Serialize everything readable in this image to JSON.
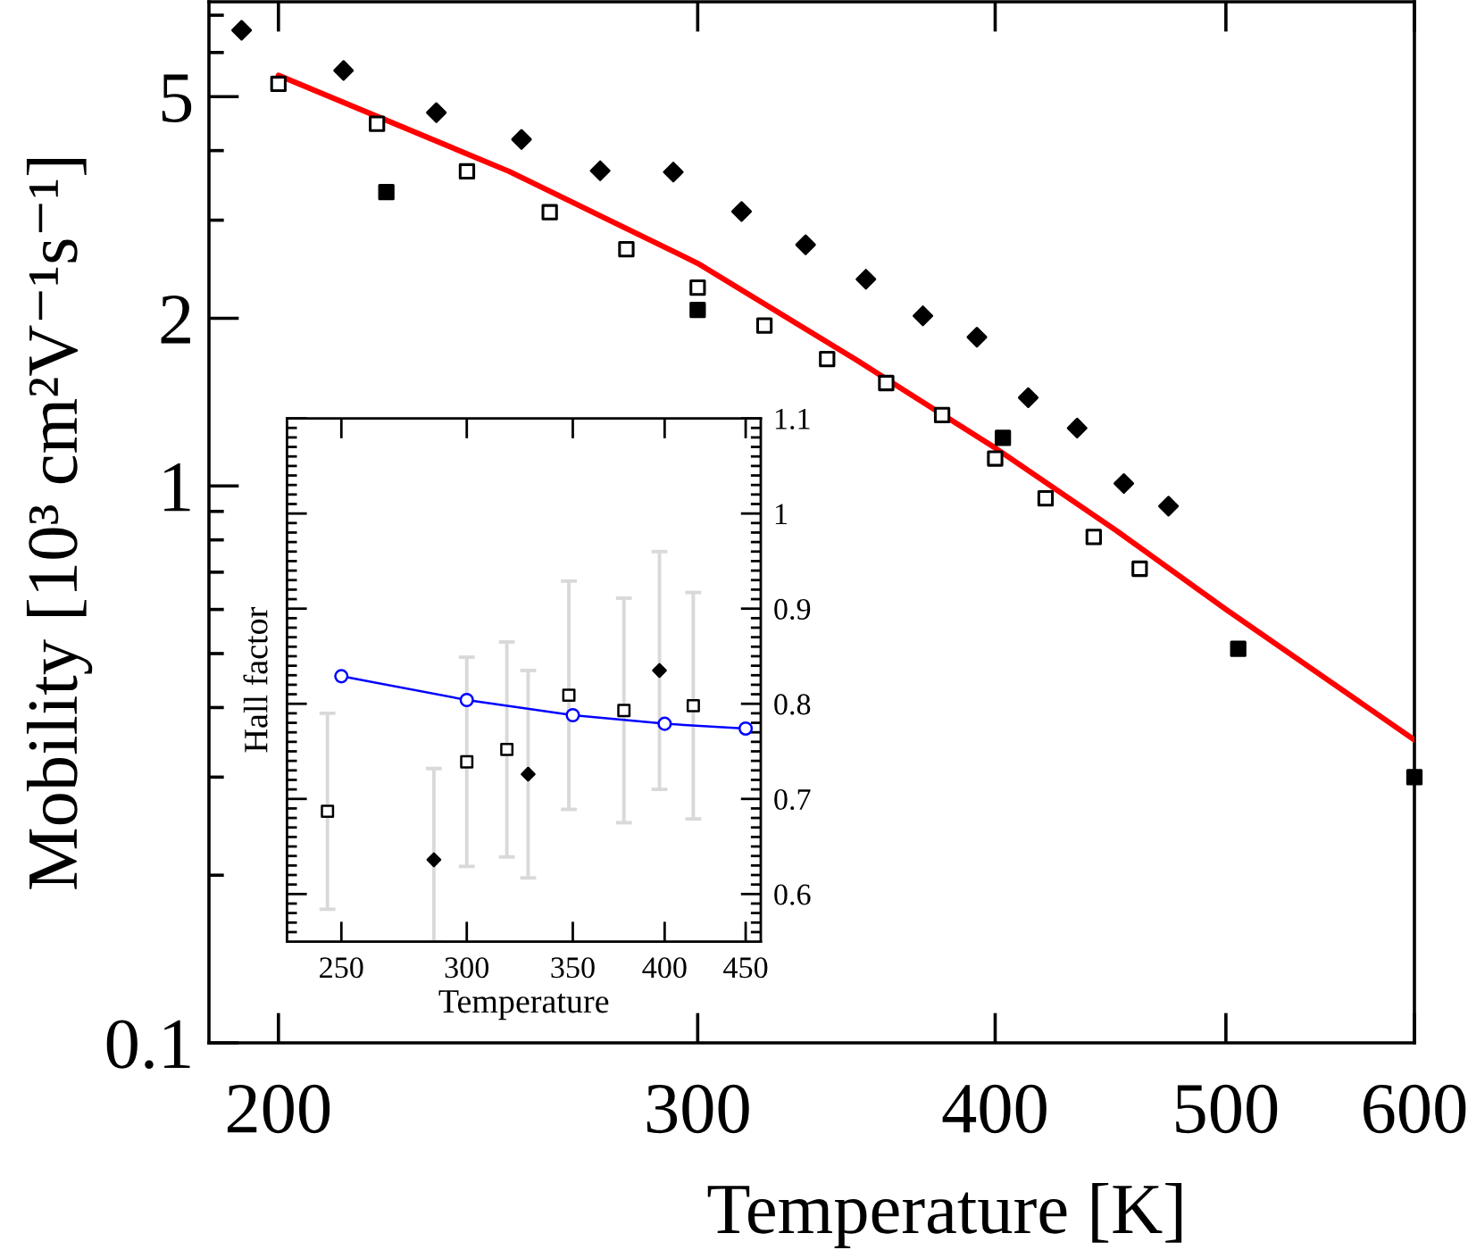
{
  "chart_data": [
    {
      "type": "scatter",
      "xlabel": "Temperature [K]",
      "ylabel": "Mobility [10³ cm²V⁻¹s⁻¹]",
      "log": "xy",
      "xlim": [
        187,
        600
      ],
      "ylim": [
        0.1,
        7.4
      ],
      "xticks": [
        200,
        300,
        400,
        500,
        600
      ],
      "yticks": [
        0.1,
        {
          "value": 0.2,
          "label": null
        },
        {
          "value": 0.3,
          "label": null
        },
        {
          "value": 0.4,
          "label": null
        },
        {
          "value": 0.5,
          "label": null
        },
        {
          "value": 0.6,
          "label": null
        },
        {
          "value": 0.7,
          "label": null
        },
        {
          "value": 0.8,
          "label": null
        },
        {
          "value": 0.9,
          "label": null
        },
        1,
        2,
        {
          "value": 3,
          "label": null
        },
        {
          "value": 4,
          "label": null
        },
        5,
        {
          "value": 6,
          "label": null
        },
        {
          "value": 7,
          "label": null
        }
      ],
      "series": [
        {
          "marker": "diamond",
          "color": "#000000",
          "x": [
            193,
            213,
            233,
            253,
            273,
            293,
            313,
            333,
            353,
            373,
            393,
            413,
            433,
            453,
            473
          ],
          "values": [
            6.58,
            5.57,
            4.68,
            4.19,
            3.68,
            3.66,
            3.11,
            2.71,
            2.35,
            2.02,
            1.85,
            1.44,
            1.27,
            1.01,
            0.92
          ]
        },
        {
          "marker": "square",
          "color": "#000000",
          "x": [
            200,
            220,
            240,
            260,
            280,
            300,
            320,
            340,
            360,
            380,
            400,
            420,
            440,
            460
          ],
          "values": [
            5.27,
            4.47,
            3.67,
            3.1,
            2.66,
            2.27,
            1.94,
            1.69,
            1.53,
            1.34,
            1.12,
            0.95,
            0.81,
            0.71
          ]
        },
        {
          "marker": "square",
          "color": "#000000",
          "x": [
            222,
            300,
            403,
            506,
            600
          ],
          "values": [
            3.37,
            2.07,
            1.22,
            0.51,
            0.3
          ]
        },
        {
          "type": "line",
          "marker": "none",
          "line_style": "solid",
          "color": "#ff0000",
          "x": [
            200,
            250,
            300,
            350,
            400,
            450,
            500,
            600
          ],
          "values": [
            5.46,
            3.67,
            2.51,
            1.68,
            1.17,
            0.83,
            0.6,
            0.35
          ]
        }
      ]
    },
    {
      "type": "scatter",
      "xlabel": "Temperature",
      "ylabel": "Hall factor",
      "log": "x",
      "xlim": [
        231,
        460
      ],
      "ylim": [
        0.55,
        1.1
      ],
      "xticks": [
        250,
        300,
        350,
        400,
        450
      ],
      "yticks": [
        {
          "value": 0.56,
          "label": null
        },
        {
          "value": 0.57,
          "label": null
        },
        {
          "value": 0.58,
          "label": null
        },
        {
          "value": 0.59,
          "label": null
        },
        0.6,
        {
          "value": 0.61,
          "label": null
        },
        {
          "value": 0.62,
          "label": null
        },
        {
          "value": 0.63,
          "label": null
        },
        {
          "value": 0.64,
          "label": null
        },
        {
          "value": 0.65,
          "label": null
        },
        {
          "value": 0.66,
          "label": null
        },
        {
          "value": 0.67,
          "label": null
        },
        {
          "value": 0.68,
          "label": null
        },
        {
          "value": 0.69,
          "label": null
        },
        0.7,
        {
          "value": 0.71,
          "label": null
        },
        {
          "value": 0.72,
          "label": null
        },
        {
          "value": 0.73,
          "label": null
        },
        {
          "value": 0.74,
          "label": null
        },
        {
          "value": 0.75,
          "label": null
        },
        {
          "value": 0.76,
          "label": null
        },
        {
          "value": 0.77,
          "label": null
        },
        {
          "value": 0.78,
          "label": null
        },
        {
          "value": 0.79,
          "label": null
        },
        0.8,
        {
          "value": 0.81,
          "label": null
        },
        {
          "value": 0.82,
          "label": null
        },
        {
          "value": 0.83,
          "label": null
        },
        {
          "value": 0.84,
          "label": null
        },
        {
          "value": 0.85,
          "label": null
        },
        {
          "value": 0.86,
          "label": null
        },
        {
          "value": 0.87,
          "label": null
        },
        {
          "value": 0.88,
          "label": null
        },
        {
          "value": 0.89,
          "label": null
        },
        0.9,
        {
          "value": 0.91,
          "label": null
        },
        {
          "value": 0.92,
          "label": null
        },
        {
          "value": 0.93,
          "label": null
        },
        {
          "value": 0.94,
          "label": null
        },
        {
          "value": 0.95,
          "label": null
        },
        {
          "value": 0.96,
          "label": null
        },
        {
          "value": 0.97,
          "label": null
        },
        {
          "value": 0.98,
          "label": null
        },
        {
          "value": 0.99,
          "label": null
        },
        1,
        {
          "value": 1.01,
          "label": null
        },
        {
          "value": 1.02,
          "label": null
        },
        {
          "value": 1.03,
          "label": null
        },
        {
          "value": 1.04,
          "label": null
        },
        {
          "value": 1.05,
          "label": null
        },
        {
          "value": 1.06,
          "label": null
        },
        {
          "value": 1.07,
          "label": null
        },
        {
          "value": 1.08,
          "label": null
        },
        {
          "value": 1.09,
          "label": null
        },
        1.1
      ],
      "series": [
        {
          "marker": "square",
          "color": "#000000",
          "x": [
            245,
            300,
            318,
            348,
            377,
            417
          ],
          "values": [
            0.687,
            0.739,
            0.752,
            0.809,
            0.793,
            0.798
          ],
          "errors": [
            0.103,
            0.11,
            0.113,
            0.12,
            0.118,
            0.119
          ]
        },
        {
          "marker": "diamond",
          "color": "#000000",
          "x": [
            286,
            328,
            397
          ],
          "values": [
            0.636,
            0.726,
            0.835
          ],
          "errors": [
            [
              0.55,
              0.732
            ],
            0.109,
            0.125
          ]
        },
        {
          "type": "line",
          "marker": "circle",
          "line_style": "solid",
          "color": "#0000ff",
          "x": [
            250,
            300,
            350,
            400,
            450
          ],
          "values": [
            0.829,
            0.804,
            0.788,
            0.779,
            0.774
          ]
        }
      ]
    }
  ]
}
